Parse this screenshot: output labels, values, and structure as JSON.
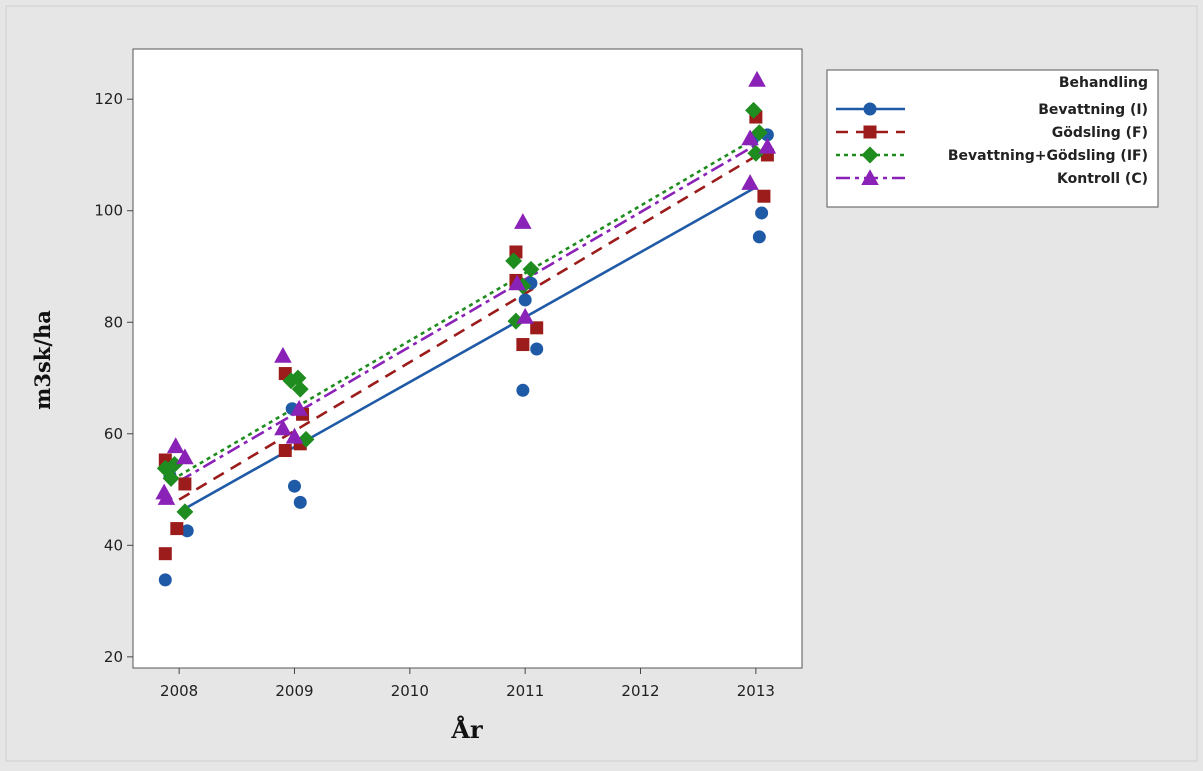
{
  "chart_data": {
    "type": "scatter",
    "xlabel": "År",
    "ylabel": "m3sk/ha",
    "xlim": [
      2007.6,
      2013.4
    ],
    "ylim": [
      18,
      129
    ],
    "x_ticks": [
      2008,
      2009,
      2010,
      2011,
      2012,
      2013
    ],
    "y_ticks": [
      20,
      40,
      60,
      80,
      100,
      120
    ],
    "grid": false,
    "legend": {
      "title": "Behandling",
      "position": "right"
    },
    "series": [
      {
        "name": "Bevattning (I)",
        "color": "#1f5aa6",
        "marker": "circle",
        "line_style": "solid",
        "fit": [
          [
            2008,
            46.0
          ],
          [
            2013,
            104.2
          ]
        ],
        "points": [
          [
            2007.88,
            33.8
          ],
          [
            2007.92,
            52.5
          ],
          [
            2008.07,
            42.6
          ],
          [
            2008.98,
            64.5
          ],
          [
            2009.0,
            50.6
          ],
          [
            2009.05,
            47.7
          ],
          [
            2010.98,
            67.8
          ],
          [
            2011.0,
            84.0
          ],
          [
            2011.05,
            87.0
          ],
          [
            2011.1,
            75.2
          ],
          [
            2012.97,
            112.8
          ],
          [
            2013.03,
            95.3
          ],
          [
            2013.05,
            99.6
          ],
          [
            2013.1,
            113.6
          ]
        ]
      },
      {
        "name": "Gödsling (F)",
        "color": "#9c1c1c",
        "marker": "square",
        "line_style": "dashed",
        "fit": [
          [
            2008,
            48.2
          ],
          [
            2013,
            109.8
          ]
        ],
        "points": [
          [
            2007.88,
            38.5
          ],
          [
            2007.88,
            55.3
          ],
          [
            2007.98,
            43.0
          ],
          [
            2008.05,
            51.0
          ],
          [
            2008.92,
            70.8
          ],
          [
            2008.92,
            57.0
          ],
          [
            2009.05,
            58.2
          ],
          [
            2009.07,
            63.5
          ],
          [
            2010.92,
            92.6
          ],
          [
            2010.92,
            87.5
          ],
          [
            2010.98,
            76.0
          ],
          [
            2011.1,
            79.0
          ],
          [
            2013.0,
            116.8
          ],
          [
            2013.07,
            102.6
          ],
          [
            2013.1,
            110.0
          ]
        ]
      },
      {
        "name": "Bevattning+Gödsling (IF)",
        "color": "#1e8c1e",
        "marker": "diamond",
        "line_style": "dotted",
        "fit": [
          [
            2008,
            52.5
          ],
          [
            2013,
            113.0
          ]
        ],
        "points": [
          [
            2007.88,
            53.8
          ],
          [
            2007.93,
            52.0
          ],
          [
            2007.96,
            54.5
          ],
          [
            2008.05,
            46.0
          ],
          [
            2008.97,
            69.5
          ],
          [
            2009.03,
            70.0
          ],
          [
            2009.05,
            68.0
          ],
          [
            2009.1,
            59.0
          ],
          [
            2010.9,
            91.0
          ],
          [
            2010.92,
            80.2
          ],
          [
            2010.98,
            86.5
          ],
          [
            2011.05,
            89.5
          ],
          [
            2012.98,
            118.0
          ],
          [
            2013.0,
            110.3
          ],
          [
            2013.03,
            114.0
          ]
        ]
      },
      {
        "name": "Kontroll (C)",
        "color": "#8b22b8",
        "marker": "triangle",
        "line_style": "dashdot",
        "fit": [
          [
            2008,
            51.5
          ],
          [
            2013,
            111.8
          ]
        ],
        "points": [
          [
            2007.87,
            49.5
          ],
          [
            2007.89,
            48.5
          ],
          [
            2007.97,
            57.8
          ],
          [
            2008.05,
            55.8
          ],
          [
            2008.9,
            74.0
          ],
          [
            2008.9,
            61.0
          ],
          [
            2009.0,
            59.5
          ],
          [
            2009.04,
            64.5
          ],
          [
            2010.93,
            87.0
          ],
          [
            2010.98,
            98.0
          ],
          [
            2011.0,
            81.0
          ],
          [
            2012.95,
            105.0
          ],
          [
            2012.95,
            113.0
          ],
          [
            2013.01,
            123.5
          ],
          [
            2013.1,
            111.5
          ]
        ]
      }
    ]
  }
}
